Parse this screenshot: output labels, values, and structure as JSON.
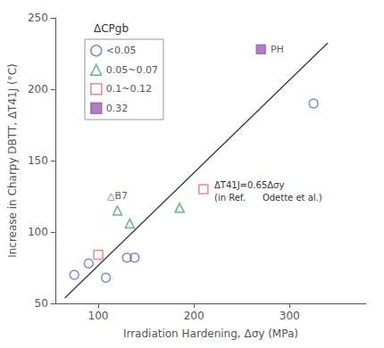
{
  "chart_data": {
    "type": "scatter",
    "xlabel": "Irradiation Hardening, Δσy (MPa)",
    "ylabel": "Increase in Charpy DBTT, ΔT41J (°C)",
    "xlim": [
      55,
      380
    ],
    "ylim": [
      50,
      250
    ],
    "xticks": [
      100,
      200,
      300
    ],
    "yticks": [
      50,
      100,
      150,
      200,
      250
    ],
    "grid": false,
    "legend": "upper left",
    "legend_title": "ΔCPgb",
    "series": [
      {
        "name": "<0.05",
        "marker": "circle-open",
        "color": "#5470c6",
        "x": [
          75,
          90,
          108,
          130,
          138,
          325
        ],
        "values": [
          70,
          78,
          68,
          82,
          82,
          190
        ]
      },
      {
        "name": "0.05~0.07",
        "marker": "triangle-open",
        "color": "#3ba272",
        "x": [
          120,
          133,
          185
        ],
        "values": [
          115,
          106,
          117
        ],
        "point_labels": [
          "△B7",
          null,
          null
        ]
      },
      {
        "name": "0.1~0.12",
        "marker": "square-open",
        "color": "#ee6666",
        "x": [
          100,
          210
        ],
        "values": [
          84,
          130
        ]
      },
      {
        "name": "0.32",
        "marker": "square",
        "color": "#9a60b4",
        "x": [
          270
        ],
        "values": [
          228
        ],
        "point_labels": [
          "PH"
        ]
      },
      {
        "type": "line",
        "line_style": "solid",
        "color": "#333333",
        "x": [
          65,
          340
        ],
        "values": [
          53.75,
          232.5
        ]
      }
    ],
    "annotations": [
      {
        "text": "ΔT41J=0.65Δσy\n(in Ref.      Odette et al.)"
      }
    ]
  }
}
